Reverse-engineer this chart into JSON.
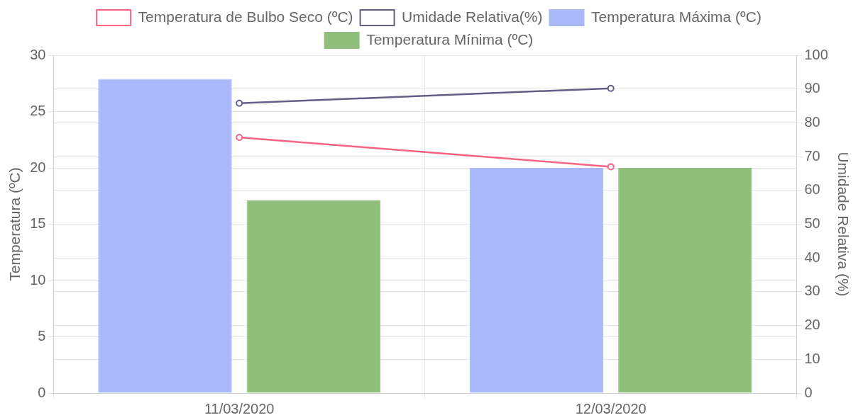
{
  "chart_data": {
    "type": "bar",
    "categories": [
      "11/03/2020",
      "12/03/2020"
    ],
    "series": [
      {
        "name": "Temperatura de Bulbo Seco (ºC)",
        "type": "line",
        "color": "#ff6384",
        "values": [
          22.7,
          20.1
        ]
      },
      {
        "name": "Umidade Relativa(%)",
        "type": "line",
        "axis": "y2",
        "color": "#625e86",
        "values": [
          85.8,
          90.2
        ]
      },
      {
        "name": "Temperatura Máxima (ºC)",
        "color": "#a9b8f8",
        "values": [
          27.9,
          20
        ]
      },
      {
        "name": "Temperatura Mínima (ºC)",
        "color": "#90bf7c",
        "values": [
          17.1,
          20
        ]
      }
    ],
    "ylabel": "Temperatura (ºC)",
    "y2label": "Umidade Relativa (%)",
    "ylim": [
      0,
      30
    ],
    "yticks": [
      0,
      5,
      10,
      15,
      20,
      25,
      30
    ],
    "y2lim": [
      0,
      100
    ],
    "y2ticks": [
      0,
      10,
      20,
      30,
      40,
      50,
      60,
      70,
      80,
      90,
      100
    ],
    "grid": true,
    "legend": "top",
    "marker": "circle",
    "line_style": "solid"
  }
}
